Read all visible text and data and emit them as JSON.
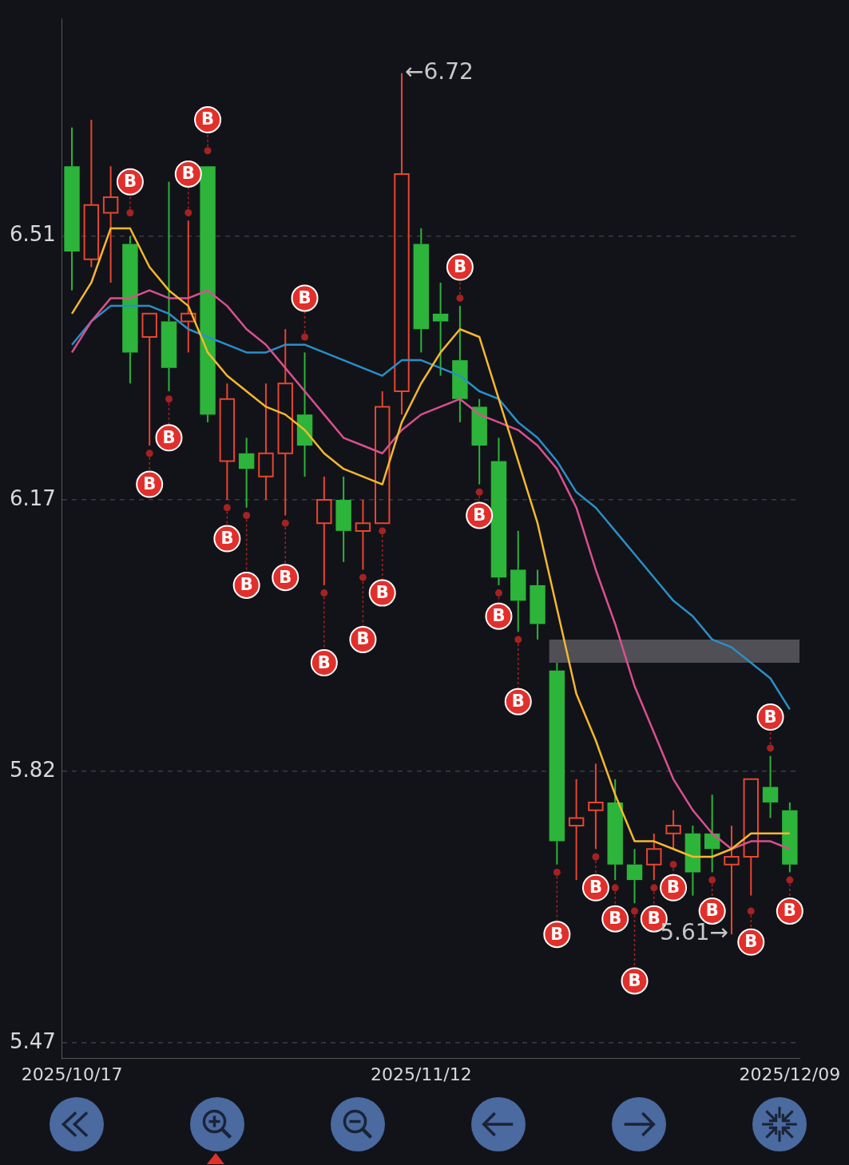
{
  "chart_data": {
    "type": "candlestick",
    "categories": [
      "2025/10/17",
      null,
      null,
      null,
      null,
      null,
      null,
      null,
      null,
      null,
      null,
      null,
      null,
      null,
      null,
      null,
      null,
      null,
      "2025/11/12",
      null,
      null,
      null,
      null,
      null,
      null,
      null,
      null,
      null,
      null,
      null,
      null,
      null,
      null,
      null,
      null,
      null,
      null,
      "2025/12/09"
    ],
    "ohlc": [
      [
        6.6,
        6.65,
        6.44,
        6.49
      ],
      [
        6.48,
        6.66,
        6.47,
        6.55
      ],
      [
        6.54,
        6.6,
        6.45,
        6.56
      ],
      [
        6.5,
        6.51,
        6.32,
        6.36
      ],
      [
        6.38,
        6.41,
        6.24,
        6.41
      ],
      [
        6.4,
        6.58,
        6.31,
        6.34
      ],
      [
        6.4,
        6.53,
        6.36,
        6.41
      ],
      [
        6.6,
        6.6,
        6.27,
        6.28
      ],
      [
        6.22,
        6.32,
        6.17,
        6.3
      ],
      [
        6.23,
        6.25,
        6.16,
        6.21
      ],
      [
        6.2,
        6.32,
        6.17,
        6.23
      ],
      [
        6.23,
        6.39,
        6.15,
        6.32
      ],
      [
        6.28,
        6.36,
        6.2,
        6.24
      ],
      [
        6.14,
        6.2,
        6.06,
        6.17
      ],
      [
        6.17,
        6.2,
        6.09,
        6.13
      ],
      [
        6.13,
        6.17,
        6.08,
        6.14
      ],
      [
        6.14,
        6.31,
        6.14,
        6.29
      ],
      [
        6.31,
        6.72,
        6.28,
        6.59
      ],
      [
        6.5,
        6.52,
        6.36,
        6.39
      ],
      [
        6.41,
        6.45,
        6.33,
        6.4
      ],
      [
        6.35,
        6.42,
        6.27,
        6.3
      ],
      [
        6.29,
        6.3,
        6.19,
        6.24
      ],
      [
        6.22,
        6.25,
        6.06,
        6.07
      ],
      [
        6.08,
        6.13,
        6.0,
        6.04
      ],
      [
        6.06,
        6.08,
        5.99,
        6.01
      ],
      [
        5.95,
        5.96,
        5.7,
        5.73
      ],
      [
        5.75,
        5.81,
        5.68,
        5.76
      ],
      [
        5.77,
        5.83,
        5.72,
        5.78
      ],
      [
        5.78,
        5.81,
        5.68,
        5.7
      ],
      [
        5.7,
        5.72,
        5.65,
        5.68
      ],
      [
        5.7,
        5.74,
        5.68,
        5.72
      ],
      [
        5.74,
        5.77,
        5.72,
        5.75
      ],
      [
        5.74,
        5.75,
        5.66,
        5.69
      ],
      [
        5.74,
        5.79,
        5.69,
        5.72
      ],
      [
        5.7,
        5.75,
        5.61,
        5.71
      ],
      [
        5.71,
        5.81,
        5.66,
        5.81
      ],
      [
        5.8,
        5.84,
        5.76,
        5.78
      ],
      [
        5.77,
        5.78,
        5.69,
        5.7
      ]
    ],
    "colors": [
      "#2db43a",
      "#e8452f",
      "#e8452f",
      "#2db43a",
      "#e8452f",
      "#2db43a",
      "#e8452f",
      "#2db43a",
      "#e8452f",
      "#2db43a",
      "#e8452f",
      "#e8452f",
      "#2db43a",
      "#e8452f",
      "#2db43a",
      "#e8452f",
      "#e8452f",
      "#e8452f",
      "#2db43a",
      "#2db43a",
      "#2db43a",
      "#2db43a",
      "#2db43a",
      "#2db43a",
      "#2db43a",
      "#2db43a",
      "#e8452f",
      "#e8452f",
      "#2db43a",
      "#2db43a",
      "#e8452f",
      "#e8452f",
      "#2db43a",
      "#2db43a",
      "#e8452f",
      "#e8452f",
      "#2db43a",
      "#2db43a"
    ],
    "series": [
      {
        "type": "line",
        "color": "#f5b82e",
        "values": [
          6.41,
          6.45,
          6.52,
          6.52,
          6.47,
          6.44,
          6.42,
          6.36,
          6.33,
          6.31,
          6.29,
          6.28,
          6.26,
          6.23,
          6.21,
          6.2,
          6.19,
          6.27,
          6.32,
          6.36,
          6.39,
          6.38,
          6.3,
          6.22,
          6.14,
          6.03,
          5.92,
          5.86,
          5.79,
          5.73,
          5.73,
          5.72,
          5.71,
          5.71,
          5.72,
          5.74,
          5.74,
          5.74
        ]
      },
      {
        "type": "line",
        "color": "#d9508f",
        "values": [
          6.36,
          6.4,
          6.43,
          6.43,
          6.44,
          6.43,
          6.43,
          6.44,
          6.42,
          6.39,
          6.37,
          6.34,
          6.31,
          6.28,
          6.25,
          6.24,
          6.23,
          6.26,
          6.28,
          6.29,
          6.3,
          6.28,
          6.27,
          6.26,
          6.24,
          6.21,
          6.16,
          6.08,
          6.01,
          5.93,
          5.87,
          5.81,
          5.77,
          5.74,
          5.72,
          5.73,
          5.73,
          5.72
        ]
      },
      {
        "type": "line",
        "color": "#2a8fc7",
        "values": [
          6.37,
          6.4,
          6.42,
          6.42,
          6.42,
          6.41,
          6.39,
          6.38,
          6.37,
          6.36,
          6.36,
          6.37,
          6.37,
          6.36,
          6.35,
          6.34,
          6.33,
          6.35,
          6.35,
          6.34,
          6.33,
          6.31,
          6.3,
          6.27,
          6.25,
          6.22,
          6.18,
          6.16,
          6.13,
          6.1,
          6.07,
          6.04,
          6.02,
          5.99,
          5.98,
          5.96,
          5.94,
          5.9
        ]
      },
      {
        "type": "scatter",
        "color": "#a52222",
        "values": [
          null,
          null,
          null,
          6.54,
          6.23,
          6.3,
          6.54,
          6.62,
          6.16,
          6.15,
          null,
          6.14,
          6.38,
          6.05,
          null,
          6.07,
          6.13,
          null,
          null,
          null,
          6.43,
          6.18,
          6.05,
          5.99,
          null,
          5.69,
          null,
          5.71,
          5.67,
          5.64,
          5.67,
          5.7,
          null,
          5.68,
          null,
          5.64,
          5.85,
          5.68
        ]
      },
      {
        "type": "scatter",
        "name": "B",
        "color": "#e1302b",
        "values": [
          null,
          null,
          null,
          6.58,
          6.19,
          6.25,
          6.59,
          6.66,
          6.12,
          6.06,
          null,
          6.07,
          6.43,
          5.96,
          null,
          5.99,
          6.05,
          null,
          null,
          null,
          6.47,
          6.15,
          6.02,
          5.91,
          null,
          5.61,
          null,
          5.67,
          5.63,
          5.55,
          5.63,
          5.67,
          null,
          5.64,
          null,
          5.6,
          5.89,
          5.64
        ]
      }
    ],
    "ylim": [
      5.45,
      6.79
    ],
    "yticks": [
      6.51,
      6.17,
      5.82,
      5.47
    ],
    "grid": "y",
    "bands": [
      {
        "axis": "y",
        "from": 5.96,
        "to": 5.99,
        "color": "#5a5b60"
      }
    ],
    "annotations": [
      "←6.72",
      "5.61→"
    ]
  }
}
